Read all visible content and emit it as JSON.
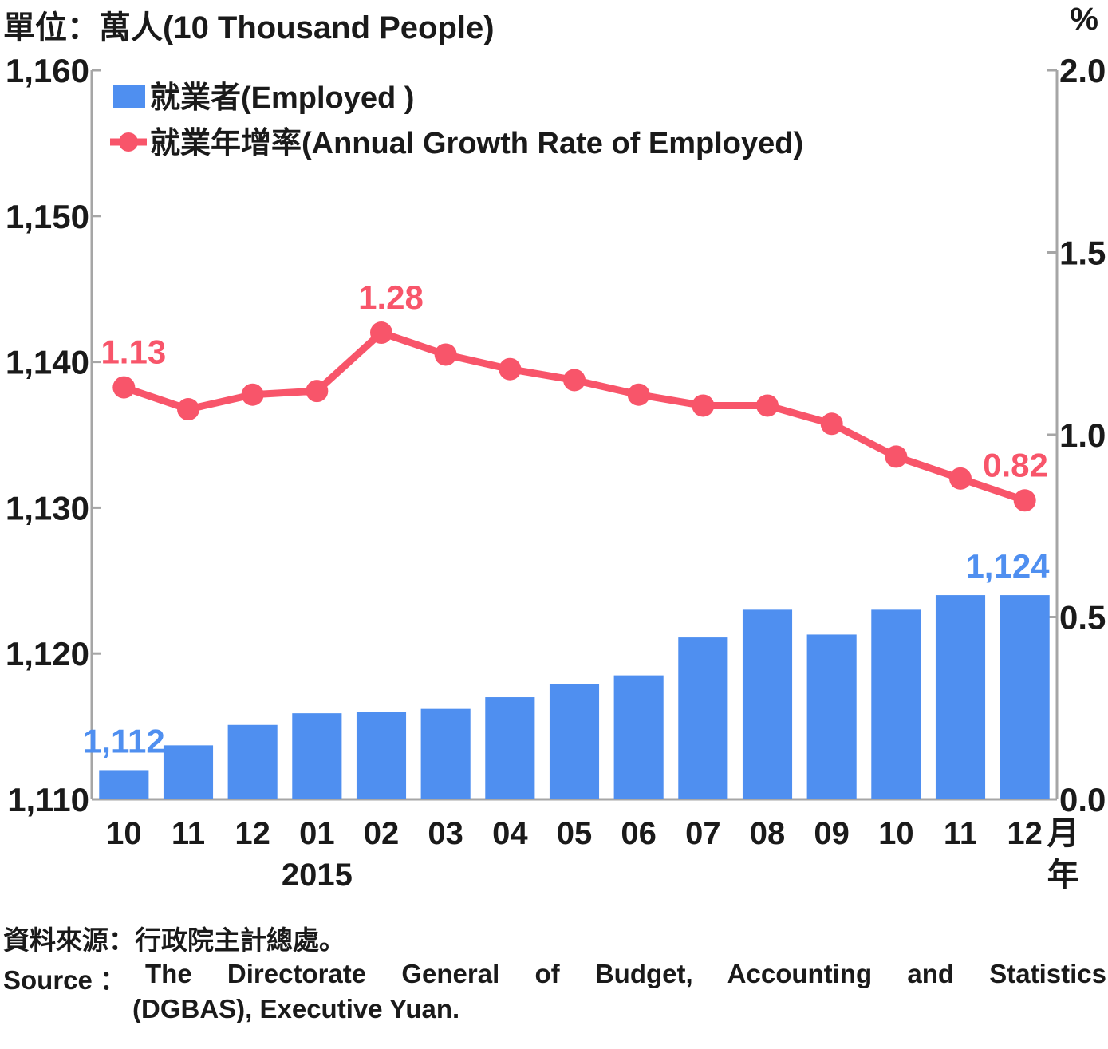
{
  "unit_left": "單位：萬人(10 Thousand People)",
  "unit_right": "%",
  "chart_data": {
    "type": "bar+line",
    "categories": [
      "10",
      "11",
      "12",
      "01",
      "02",
      "03",
      "04",
      "05",
      "06",
      "07",
      "08",
      "09",
      "10",
      "11",
      "12"
    ],
    "x_suffix_month": "月",
    "x_suffix_year": "年",
    "year_label": "2015",
    "year_label_index": 3,
    "y_left": {
      "min": 1110,
      "max": 1160,
      "ticks": [
        "1,110",
        "1,120",
        "1,130",
        "1,140",
        "1,150",
        "1,160"
      ]
    },
    "y_right": {
      "min": 0.0,
      "max": 2.0,
      "ticks": [
        "0.0",
        "0.5",
        "1.0",
        "1.5",
        "2.0"
      ]
    },
    "series": [
      {
        "name": "就業者(Employed )",
        "type": "bar",
        "axis": "left",
        "color": "#4f8ff0",
        "values": [
          1112,
          1113.7,
          1115.1,
          1115.9,
          1116.0,
          1116.2,
          1117.0,
          1117.9,
          1118.5,
          1121.1,
          1123.0,
          1121.3,
          1123.0,
          1124,
          1124
        ],
        "labels": [
          {
            "index": 0,
            "text": "1,112"
          },
          {
            "index": 14,
            "text": "1,124"
          }
        ]
      },
      {
        "name": "就業年增率(Annual Growth Rate of Employed)",
        "type": "line",
        "axis": "right",
        "color": "#f8556a",
        "values": [
          1.13,
          1.07,
          1.11,
          1.12,
          1.28,
          1.22,
          1.18,
          1.15,
          1.11,
          1.08,
          1.08,
          1.03,
          0.94,
          0.88,
          0.82
        ],
        "labels": [
          {
            "index": 0,
            "text": "1.13"
          },
          {
            "index": 4,
            "text": "1.28"
          },
          {
            "index": 14,
            "text": "0.82"
          }
        ]
      }
    ],
    "legend_position": "top-left",
    "grid": false
  },
  "source_zh": "資料來源：行政院主計總處。",
  "source_en_label": "Source ：",
  "source_en_text": "The Directorate General of Budget, Accounting and Statistics",
  "source_en_text2": "(DGBAS), Executive Yuan."
}
